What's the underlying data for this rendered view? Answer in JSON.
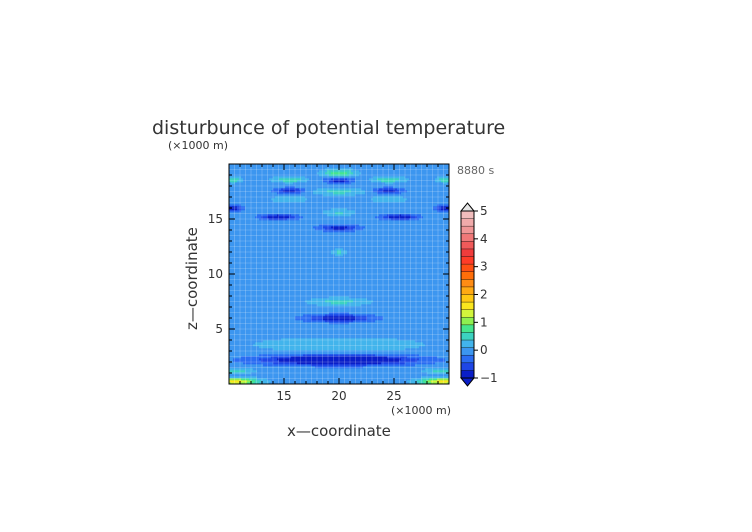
{
  "chart_data": {
    "type": "heatmap",
    "title": "disturbunce of potential temperature",
    "time_label": "8880 s",
    "xlabel": "x—coordinate",
    "ylabel": "z—coordinate",
    "x_unit": "(×1000 m)",
    "y_unit": "(×1000 m)",
    "xlim": [
      10,
      30
    ],
    "ylim": [
      0,
      20
    ],
    "x_ticks": [
      15,
      20,
      25
    ],
    "y_ticks": [
      5,
      10,
      15
    ],
    "grid": true,
    "legend_placement": "right",
    "colorbar": {
      "levels": [
        -1,
        -0.75,
        -0.5,
        -0.25,
        0,
        0.25,
        0.5,
        0.75,
        1,
        1.25,
        1.5,
        1.75,
        2,
        2.25,
        2.5,
        2.75,
        3,
        3.25,
        3.5,
        3.75,
        4,
        4.25,
        4.5,
        4.75,
        5
      ],
      "colors": [
        "#0a1ec8",
        "#1e46e6",
        "#2a6cf2",
        "#3c96f0",
        "#42b4ec",
        "#3cd2c0",
        "#46e68c",
        "#8ef050",
        "#d2f53c",
        "#fae61e",
        "#ffc814",
        "#ffaa14",
        "#ff8c14",
        "#ff6e0a",
        "#ff5014",
        "#ff3c28",
        "#f03c3c",
        "#f05a5a",
        "#f07878",
        "#f09696",
        "#f0aaaa",
        "#f0bcbc"
      ],
      "tick_labels": [
        "−1",
        "0",
        "1",
        "2",
        "3",
        "4",
        "5"
      ],
      "under_color": "#0a1ec8",
      "over_color": "#e6e6e6"
    },
    "background_value": -0.1,
    "features": [
      {
        "x": 20,
        "z": 2.2,
        "sx": 6.5,
        "sz": 0.45,
        "amp": -1.4
      },
      {
        "x": 20,
        "z": 3.6,
        "sx": 7,
        "sz": 0.6,
        "amp": 0.35
      },
      {
        "x": 20,
        "z": 6.0,
        "sx": 3,
        "sz": 0.35,
        "amp": -0.9
      },
      {
        "x": 20,
        "z": 7.5,
        "sx": 2.5,
        "sz": 0.35,
        "amp": 0.45
      },
      {
        "x": 20,
        "z": 9.5,
        "sx": 4,
        "sz": 0.7,
        "amp": -0.12
      },
      {
        "x": 20,
        "z": 12.0,
        "sx": 0.6,
        "sz": 0.25,
        "amp": 0.45
      },
      {
        "x": 20,
        "z": 14.2,
        "sx": 1.8,
        "sz": 0.3,
        "amp": -0.8
      },
      {
        "x": 20,
        "z": 15.6,
        "sx": 1.3,
        "sz": 0.3,
        "amp": 0.4
      },
      {
        "x": 20,
        "z": 17.5,
        "sx": 2.2,
        "sz": 0.3,
        "amp": 0.45
      },
      {
        "x": 20,
        "z": 18.5,
        "sx": 1.2,
        "sz": 0.25,
        "amp": -0.8
      },
      {
        "x": 20,
        "z": 19.2,
        "sx": 1.4,
        "sz": 0.3,
        "amp": 0.8
      },
      {
        "x": 14.5,
        "z": 15.2,
        "sx": 1.6,
        "sz": 0.25,
        "amp": -1.0
      },
      {
        "x": 25.5,
        "z": 15.2,
        "sx": 1.6,
        "sz": 0.25,
        "amp": -1.0
      },
      {
        "x": 15.5,
        "z": 16.8,
        "sx": 1.6,
        "sz": 0.3,
        "amp": 0.3
      },
      {
        "x": 24.5,
        "z": 16.8,
        "sx": 1.6,
        "sz": 0.3,
        "amp": 0.3
      },
      {
        "x": 15.5,
        "z": 17.6,
        "sx": 1.3,
        "sz": 0.25,
        "amp": -0.8
      },
      {
        "x": 24.5,
        "z": 17.6,
        "sx": 1.3,
        "sz": 0.25,
        "amp": -0.8
      },
      {
        "x": 15.5,
        "z": 18.6,
        "sx": 1.4,
        "sz": 0.25,
        "amp": 0.6
      },
      {
        "x": 24.5,
        "z": 18.6,
        "sx": 1.4,
        "sz": 0.25,
        "amp": 0.6
      },
      {
        "x": 10.4,
        "z": 16.0,
        "sx": 0.8,
        "sz": 0.25,
        "amp": -0.9
      },
      {
        "x": 29.6,
        "z": 16.0,
        "sx": 0.8,
        "sz": 0.25,
        "amp": -0.9
      },
      {
        "x": 10.4,
        "z": 18.6,
        "sx": 0.7,
        "sz": 0.25,
        "amp": 0.6
      },
      {
        "x": 29.6,
        "z": 18.6,
        "sx": 0.7,
        "sz": 0.25,
        "amp": 0.6
      },
      {
        "x": 10.5,
        "z": 0.25,
        "sx": 2.0,
        "sz": 0.3,
        "amp": 1.5
      },
      {
        "x": 29.5,
        "z": 0.25,
        "sx": 2.0,
        "sz": 0.3,
        "amp": 1.5
      },
      {
        "x": 10.5,
        "z": 1.2,
        "sx": 1.6,
        "sz": 0.25,
        "amp": 0.5
      },
      {
        "x": 29.5,
        "z": 1.2,
        "sx": 1.6,
        "sz": 0.25,
        "amp": 0.5
      }
    ]
  }
}
